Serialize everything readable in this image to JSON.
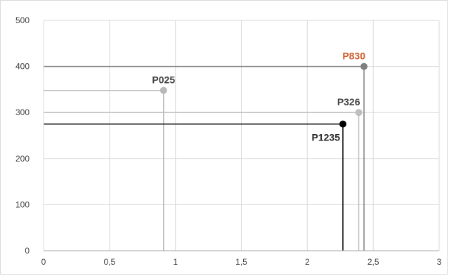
{
  "chart_data": {
    "type": "scatter",
    "title": "",
    "xlabel": "",
    "ylabel": "",
    "xlim": [
      0,
      3
    ],
    "ylim": [
      0,
      500
    ],
    "x_ticks": [
      0,
      0.5,
      1,
      1.5,
      2,
      2.5,
      3
    ],
    "x_tick_labels": [
      "0",
      "0,5",
      "1",
      "1,5",
      "2",
      "2,5",
      "3"
    ],
    "y_ticks": [
      0,
      100,
      200,
      300,
      400,
      500
    ],
    "y_tick_labels": [
      "0",
      "100",
      "200",
      "300",
      "400",
      "500"
    ],
    "grid": true,
    "drop_lines": true,
    "points": [
      {
        "label": "P025",
        "x": 0.91,
        "y": 348,
        "color": "#b8b8b8",
        "label_color": "#404040",
        "label_pos": "above"
      },
      {
        "label": "P830",
        "x": 2.43,
        "y": 400,
        "color": "#7f7f7f",
        "label_color": "#d05a2a",
        "label_pos": "above-left"
      },
      {
        "label": "P326",
        "x": 2.39,
        "y": 300,
        "color": "#bfbfbf",
        "label_color": "#404040",
        "label_pos": "above-left"
      },
      {
        "label": "P1235",
        "x": 2.27,
        "y": 275,
        "color": "#000000",
        "label_color": "#262626",
        "label_pos": "below-left"
      }
    ]
  }
}
